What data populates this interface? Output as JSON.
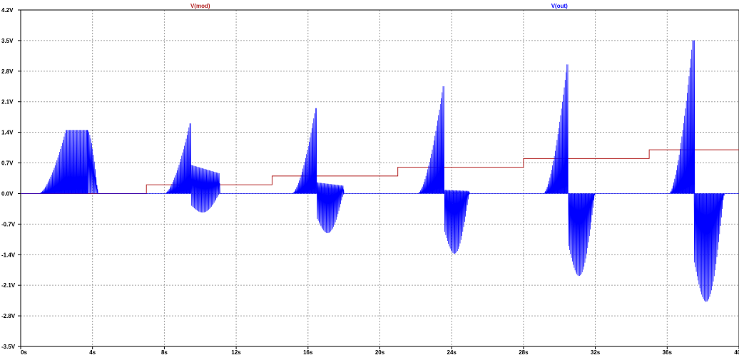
{
  "chart_data": {
    "type": "line",
    "title": "",
    "xlabel": "",
    "ylabel": "",
    "xlim": [
      0,
      40
    ],
    "ylim": [
      -3.5,
      4.2
    ],
    "grid": true,
    "x_ticks": [
      {
        "value": 0,
        "label": "0s"
      },
      {
        "value": 4,
        "label": "4s"
      },
      {
        "value": 8,
        "label": "8s"
      },
      {
        "value": 12,
        "label": "12s"
      },
      {
        "value": 16,
        "label": "16s"
      },
      {
        "value": 20,
        "label": "20s"
      },
      {
        "value": 24,
        "label": "24s"
      },
      {
        "value": 28,
        "label": "28s"
      },
      {
        "value": 32,
        "label": "32s"
      },
      {
        "value": 36,
        "label": "36s"
      },
      {
        "value": 40,
        "label": "40s"
      }
    ],
    "y_ticks": [
      {
        "value": 4.2,
        "label": "4.2V"
      },
      {
        "value": 3.5,
        "label": "3.5V"
      },
      {
        "value": 2.8,
        "label": "2.8V"
      },
      {
        "value": 2.1,
        "label": "2.1V"
      },
      {
        "value": 1.4,
        "label": "1.4V"
      },
      {
        "value": 0.7,
        "label": "0.7V"
      },
      {
        "value": 0.0,
        "label": "0.0V"
      },
      {
        "value": -0.7,
        "label": "-0.7V"
      },
      {
        "value": -1.4,
        "label": "-1.4V"
      },
      {
        "value": -2.1,
        "label": "-2.1V"
      },
      {
        "value": -2.8,
        "label": "-2.8V"
      },
      {
        "value": -3.5,
        "label": "-3.5V"
      }
    ],
    "series": [
      {
        "name": "V(mod)",
        "color": "#b22222",
        "kind": "step",
        "steps": [
          {
            "t": 0,
            "v": 0.0
          },
          {
            "t": 7,
            "v": 0.2
          },
          {
            "t": 14,
            "v": 0.4
          },
          {
            "t": 21,
            "v": 0.6
          },
          {
            "t": 28,
            "v": 0.8
          },
          {
            "t": 35,
            "v": 1.0
          }
        ]
      },
      {
        "name": "V(out)",
        "color": "#0000ff",
        "kind": "bursts",
        "bursts": [
          {
            "rise_start": 1.0,
            "peak_time": 2.5,
            "peak": 1.45,
            "peak_end": 3.7,
            "neg_min": 0.0,
            "hold": 0.0,
            "neg_start": 3.7,
            "neg_end": 4.3
          },
          {
            "rise_start": 8.0,
            "peak_time": 9.4,
            "peak": 1.6,
            "peak_end": 9.5,
            "neg_min": -0.55,
            "hold": 0.65,
            "neg_start": 9.5,
            "neg_end": 11.1
          },
          {
            "rise_start": 15.1,
            "peak_time": 16.4,
            "peak": 1.95,
            "peak_end": 16.5,
            "neg_min": -1.15,
            "hold": 0.25,
            "neg_start": 16.5,
            "neg_end": 18.0
          },
          {
            "rise_start": 22.1,
            "peak_time": 23.5,
            "peak": 2.45,
            "peak_end": 23.6,
            "neg_min": -1.75,
            "hold": 0.08,
            "neg_start": 23.6,
            "neg_end": 25.0
          },
          {
            "rise_start": 29.1,
            "peak_time": 30.4,
            "peak": 2.95,
            "peak_end": 30.5,
            "neg_min": -2.4,
            "hold": 0.0,
            "neg_start": 30.5,
            "neg_end": 32.0
          },
          {
            "rise_start": 36.1,
            "peak_time": 37.4,
            "peak": 3.5,
            "peak_end": 37.5,
            "neg_min": -3.15,
            "hold": 0.0,
            "neg_start": 37.5,
            "neg_end": 39.2
          }
        ]
      }
    ]
  }
}
